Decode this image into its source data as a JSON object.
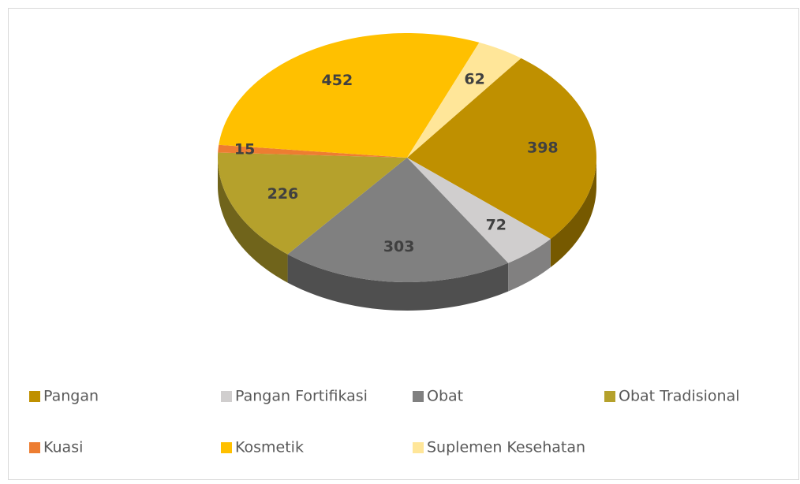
{
  "chart_data": {
    "type": "pie",
    "categories": [
      "Pangan",
      "Pangan Fortifikasi",
      "Obat",
      "Obat Tradisional",
      "Kuasi",
      "Kosmetik",
      "Suplemen Kesehatan"
    ],
    "values": [
      398,
      72,
      303,
      226,
      15,
      452,
      62
    ],
    "colors": [
      "#bf9000",
      "#d0cece",
      "#808080",
      "#b5a12c",
      "#ed7d31",
      "#ffc000",
      "#ffe699"
    ],
    "legend": "bottom"
  }
}
